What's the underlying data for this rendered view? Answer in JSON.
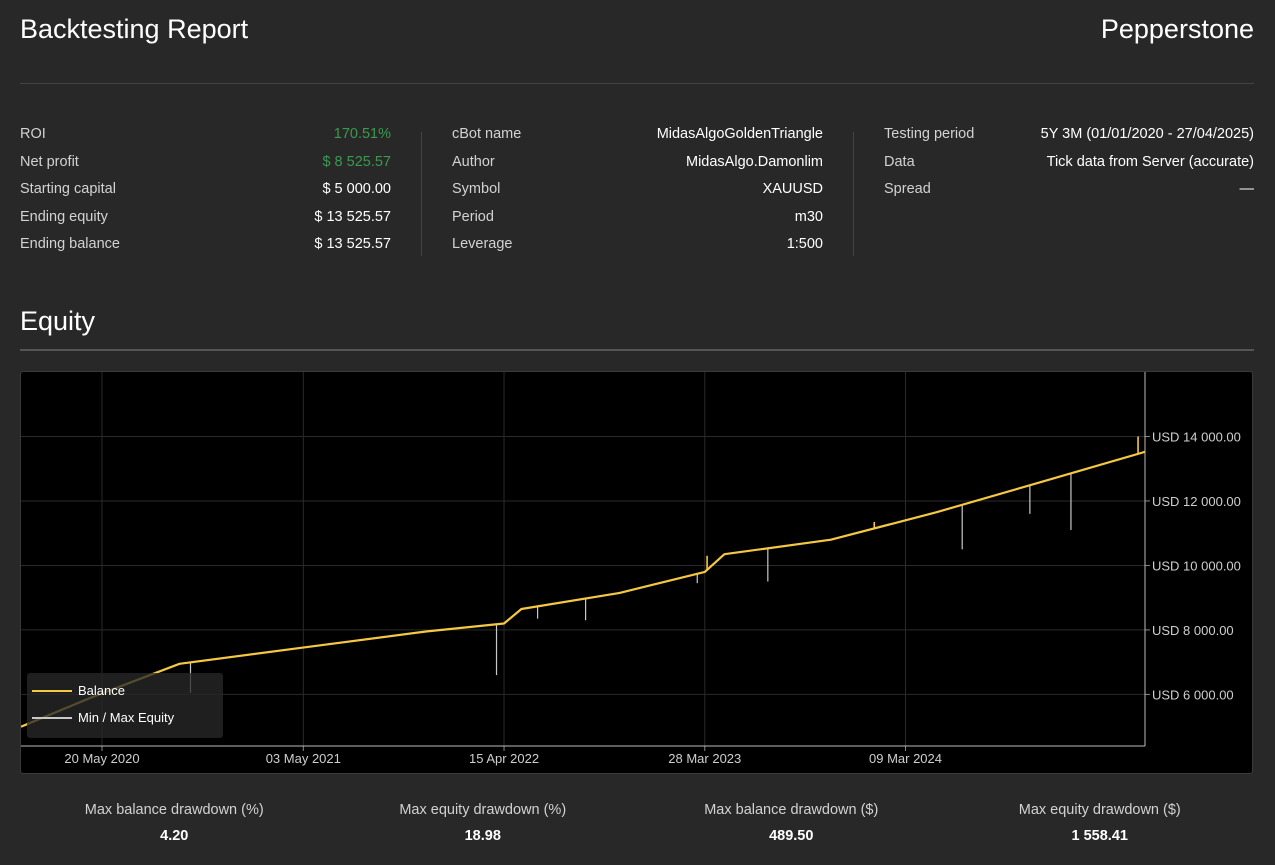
{
  "header": {
    "title": "Backtesting Report",
    "broker": "Pepperstone"
  },
  "summary": {
    "col1": [
      {
        "label": "ROI",
        "value": "170.51%",
        "color": "#3a9a4e"
      },
      {
        "label": "Net profit",
        "value": "$ 8 525.57",
        "color": "#3a9a4e"
      },
      {
        "label": "Starting capital",
        "value": "$ 5 000.00"
      },
      {
        "label": "Ending equity",
        "value": "$ 13 525.57"
      },
      {
        "label": "Ending balance",
        "value": "$ 13 525.57"
      }
    ],
    "col2": [
      {
        "label": "cBot name",
        "value": "MidasAlgoGoldenTriangle"
      },
      {
        "label": "Author",
        "value": "MidasAlgo.Damonlim"
      },
      {
        "label": "Symbol",
        "value": "XAUUSD"
      },
      {
        "label": "Period",
        "value": "m30"
      },
      {
        "label": "Leverage",
        "value": "1:500"
      }
    ],
    "col3": [
      {
        "label": "Testing period",
        "value": "5Y 3M (01/01/2020 - 27/04/2025)"
      },
      {
        "label": "Data",
        "value": "Tick data from Server (accurate)"
      },
      {
        "label": "Spread",
        "value": "—"
      }
    ]
  },
  "equity_section": {
    "title": "Equity"
  },
  "chart_data": {
    "type": "line",
    "title": "Equity",
    "x_range": [
      "2020-01-01",
      "2025-04-27"
    ],
    "x_tick_labels": [
      "20 May 2020",
      "03 May 2021",
      "15 Apr 2022",
      "28 Mar 2023",
      "09 Mar 2024"
    ],
    "x_tick_dates": [
      "2020-05-20",
      "2021-05-03",
      "2022-04-15",
      "2023-03-28",
      "2024-03-09"
    ],
    "y_ticks": [
      6000,
      8000,
      10000,
      12000,
      14000
    ],
    "y_tick_labels": [
      "USD 6 000.00",
      "USD 8 000.00",
      "USD 10 000.00",
      "USD 12 000.00",
      "USD 14 000.00"
    ],
    "ylim": [
      4400,
      16000
    ],
    "grid": true,
    "legend_position": "bottom-left",
    "series": [
      {
        "name": "Balance",
        "color": "#f5c842",
        "x": [
          "2020-01-01",
          "2020-05-01",
          "2020-10-01",
          "2021-05-01",
          "2021-12-01",
          "2022-04-15",
          "2022-05-15",
          "2022-11-01",
          "2023-03-28",
          "2023-05-01",
          "2023-11-01",
          "2024-05-01",
          "2024-11-01",
          "2025-04-27"
        ],
        "values": [
          5000,
          5900,
          6950,
          7450,
          7950,
          8200,
          8650,
          9150,
          9800,
          10350,
          10800,
          11650,
          12600,
          13525.57
        ]
      },
      {
        "name": "Min / Max Equity",
        "color": "#c8c8c8",
        "dips": [
          {
            "date": "2020-10-20",
            "value": 6050
          },
          {
            "date": "2022-04-02",
            "value": 6600
          },
          {
            "date": "2022-06-12",
            "value": 8350
          },
          {
            "date": "2022-09-03",
            "value": 8300
          },
          {
            "date": "2023-03-15",
            "value": 9450
          },
          {
            "date": "2023-07-15",
            "value": 9500
          },
          {
            "date": "2024-06-15",
            "value": 10500
          },
          {
            "date": "2024-10-10",
            "value": 11600
          },
          {
            "date": "2024-12-20",
            "value": 11100
          }
        ],
        "spikes": [
          {
            "date": "2023-04-01",
            "value": 10300
          },
          {
            "date": "2024-01-15",
            "value": 11350
          },
          {
            "date": "2025-04-15",
            "value": 14000
          }
        ]
      }
    ]
  },
  "stats": [
    {
      "label": "Max balance drawdown (%)",
      "value": "4.20"
    },
    {
      "label": "Max equity drawdown (%)",
      "value": "18.98"
    },
    {
      "label": "Max balance drawdown ($)",
      "value": "489.50"
    },
    {
      "label": "Max equity drawdown ($)",
      "value": "1 558.41"
    }
  ]
}
